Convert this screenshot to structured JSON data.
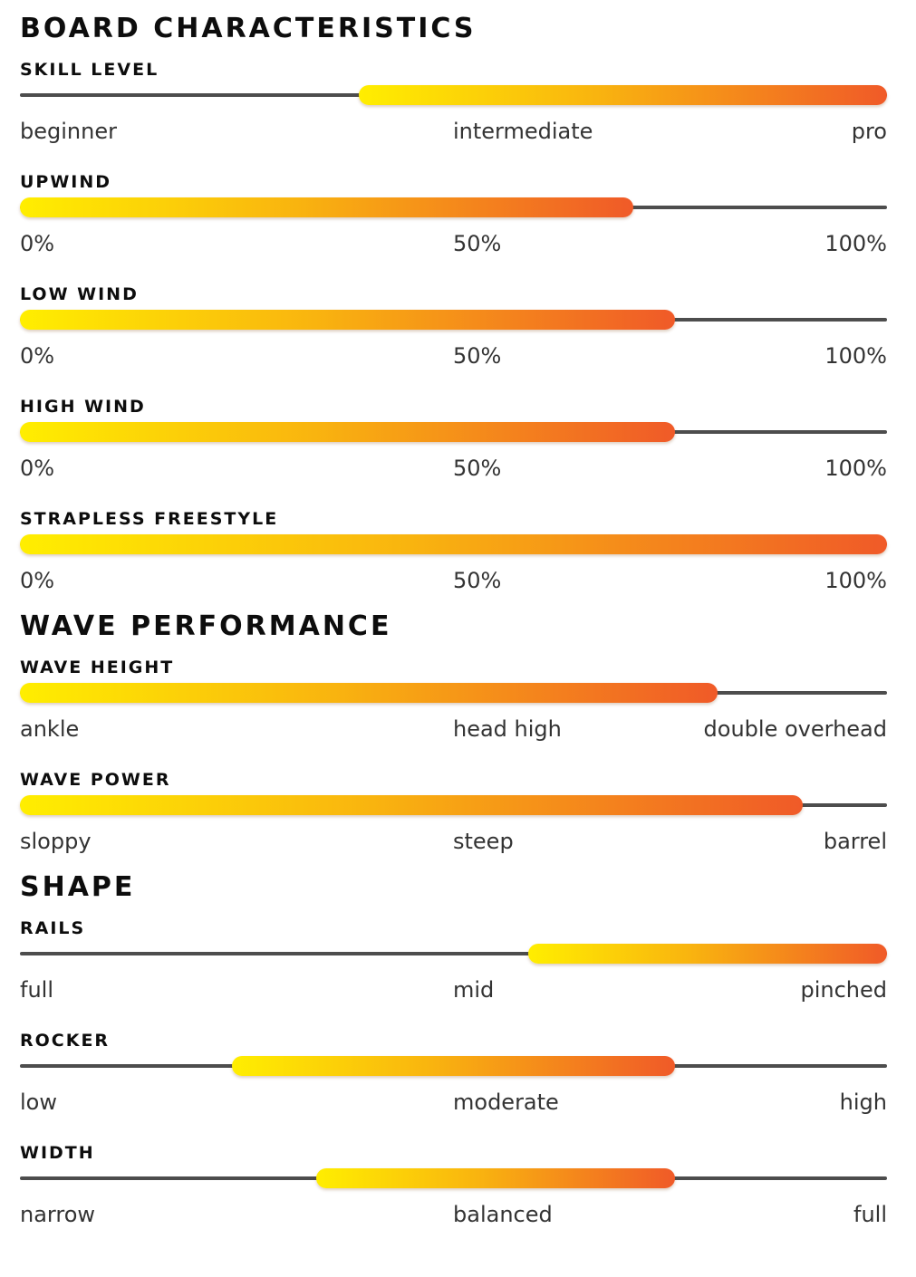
{
  "sections": [
    {
      "title": "BOARD CHARACTERISTICS",
      "rows": [
        {
          "label": "SKILL LEVEL",
          "fill_start": 0.4,
          "fill_end": 1.0,
          "scale": [
            "beginner",
            "intermediate",
            "pro"
          ]
        },
        {
          "label": "UPWIND",
          "fill_start": 0.0,
          "fill_end": 0.7,
          "scale": [
            "0%",
            "50%",
            "100%"
          ]
        },
        {
          "label": "LOW WIND",
          "fill_start": 0.0,
          "fill_end": 0.75,
          "scale": [
            "0%",
            "50%",
            "100%"
          ]
        },
        {
          "label": "HIGH WIND",
          "fill_start": 0.0,
          "fill_end": 0.75,
          "scale": [
            "0%",
            "50%",
            "100%"
          ]
        },
        {
          "label": "STRAPLESS FREESTYLE",
          "fill_start": 0.0,
          "fill_end": 1.0,
          "scale": [
            "0%",
            "50%",
            "100%"
          ]
        }
      ]
    },
    {
      "title": "WAVE PERFORMANCE",
      "rows": [
        {
          "label": "WAVE HEIGHT",
          "fill_start": 0.0,
          "fill_end": 0.8,
          "scale": [
            "ankle",
            "head high",
            "double overhead"
          ]
        },
        {
          "label": "WAVE POWER",
          "fill_start": 0.0,
          "fill_end": 0.9,
          "scale": [
            "sloppy",
            "steep",
            "barrel"
          ]
        }
      ]
    },
    {
      "title": "SHAPE",
      "rows": [
        {
          "label": "RAILS",
          "fill_start": 0.6,
          "fill_end": 1.0,
          "scale": [
            "full",
            "mid",
            "pinched"
          ]
        },
        {
          "label": "ROCKER",
          "fill_start": 0.25,
          "fill_end": 0.75,
          "scale": [
            "low",
            "moderate",
            "high"
          ]
        },
        {
          "label": "WIDTH",
          "fill_start": 0.35,
          "fill_end": 0.75,
          "scale": [
            "narrow",
            "balanced",
            "full"
          ]
        }
      ]
    }
  ],
  "colors": {
    "track": "#4d4d4d",
    "fill_start": "#ffee00",
    "fill_mid": "#f9b40f",
    "fill_end": "#f05a28",
    "heading": "#0d0d0d",
    "scale_text": "#333333"
  }
}
